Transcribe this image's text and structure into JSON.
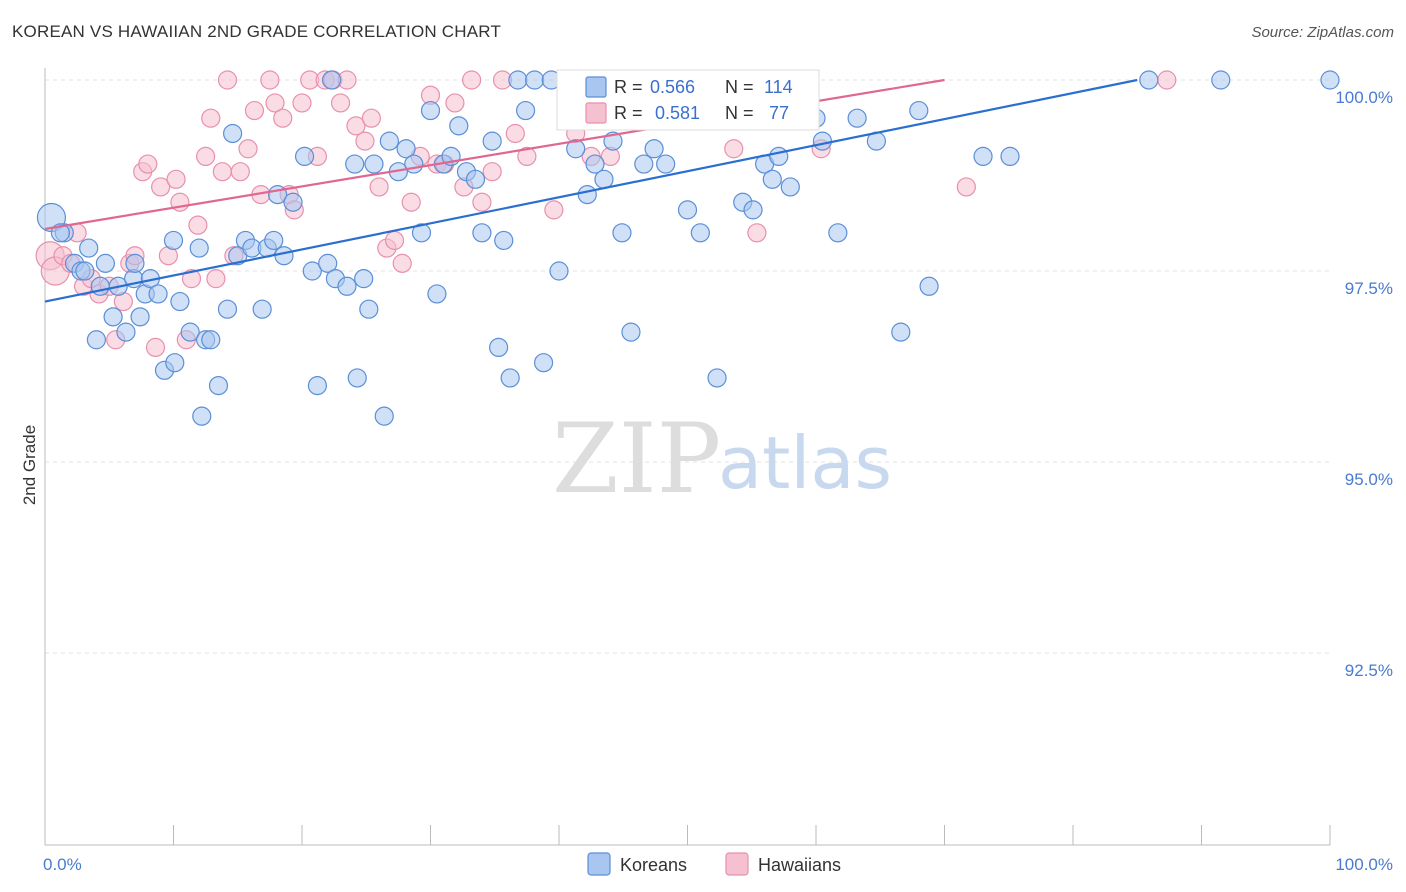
{
  "title": "KOREAN VS HAWAIIAN 2ND GRADE CORRELATION CHART",
  "source": "Source: ZipAtlas.com",
  "watermark": {
    "zip": "ZIP",
    "atlas": "atlas"
  },
  "colors": {
    "blue_fill": "#a8c6f0",
    "blue_stroke": "#5b8fd6",
    "blue_line": "#2a6fd0",
    "pink_fill": "#f5c0d0",
    "pink_stroke": "#e890ad",
    "pink_line": "#e06890",
    "grid": "#e3e3e3",
    "axis_text": "#4a7bd0"
  },
  "chart_data": {
    "type": "scatter",
    "title": "KOREAN VS HAWAIIAN 2ND GRADE CORRELATION CHART",
    "xlabel": "",
    "ylabel": "2nd Grade",
    "xlim": [
      0,
      100
    ],
    "ylim": [
      90.0,
      100.2
    ],
    "x_tick_labels": [
      "0.0%",
      "100.0%"
    ],
    "y_ticks": [
      92.5,
      95.0,
      97.5,
      100.0
    ],
    "y_tick_labels": [
      "92.5%",
      "95.0%",
      "97.5%",
      "100.0%"
    ],
    "legend": {
      "placement": "top-center",
      "entries": [
        {
          "series": "Koreans",
          "r_label": "R = ",
          "r": "0.566",
          "n_label": "N = ",
          "n": "114"
        },
        {
          "series": "Hawaiians",
          "r_label": "R = ",
          "r": "0.581",
          "n_label": "N = ",
          "n": "77"
        }
      ]
    },
    "bottom_legend": [
      "Koreans",
      "Hawaiians"
    ],
    "series": [
      {
        "name": "Koreans",
        "trend": {
          "x": [
            0,
            85
          ],
          "y": [
            97.1,
            100.0
          ]
        },
        "points": [
          [
            0.5,
            98.2
          ],
          [
            1.5,
            98.0
          ],
          [
            2.3,
            97.6
          ],
          [
            3.4,
            97.8
          ],
          [
            2.8,
            97.5
          ],
          [
            4.0,
            96.6
          ],
          [
            4.3,
            97.3
          ],
          [
            4.7,
            97.6
          ],
          [
            5.3,
            96.9
          ],
          [
            5.7,
            97.3
          ],
          [
            6.3,
            96.7
          ],
          [
            6.9,
            97.4
          ],
          [
            7.4,
            96.9
          ],
          [
            7.8,
            97.2
          ],
          [
            8.2,
            97.4
          ],
          [
            8.8,
            97.2
          ],
          [
            9.3,
            96.2
          ],
          [
            10.1,
            96.3
          ],
          [
            10.5,
            97.1
          ],
          [
            10.0,
            97.9
          ],
          [
            11.3,
            96.7
          ],
          [
            12.2,
            95.6
          ],
          [
            12.5,
            96.6
          ],
          [
            12.9,
            96.6
          ],
          [
            13.5,
            96.0
          ],
          [
            14.2,
            97.0
          ],
          [
            14.6,
            99.3
          ],
          [
            15.0,
            97.7
          ],
          [
            15.6,
            97.9
          ],
          [
            16.1,
            97.8
          ],
          [
            16.9,
            97.0
          ],
          [
            17.3,
            97.8
          ],
          [
            17.8,
            97.9
          ],
          [
            18.1,
            98.5
          ],
          [
            18.6,
            97.7
          ],
          [
            19.3,
            98.4
          ],
          [
            20.2,
            99.0
          ],
          [
            20.8,
            97.5
          ],
          [
            21.2,
            96.0
          ],
          [
            22.0,
            97.6
          ],
          [
            22.6,
            97.4
          ],
          [
            23.5,
            97.3
          ],
          [
            24.1,
            98.9
          ],
          [
            24.3,
            96.1
          ],
          [
            24.8,
            97.4
          ],
          [
            25.2,
            97.0
          ],
          [
            25.6,
            98.9
          ],
          [
            26.4,
            95.6
          ],
          [
            26.8,
            99.2
          ],
          [
            27.5,
            98.8
          ],
          [
            28.1,
            99.1
          ],
          [
            28.7,
            98.9
          ],
          [
            29.3,
            98.0
          ],
          [
            30.0,
            99.6
          ],
          [
            30.5,
            97.2
          ],
          [
            31.0,
            98.9
          ],
          [
            31.6,
            99.0
          ],
          [
            32.2,
            99.4
          ],
          [
            32.8,
            98.8
          ],
          [
            33.5,
            98.7
          ],
          [
            34.0,
            98.0
          ],
          [
            34.8,
            99.2
          ],
          [
            35.3,
            96.5
          ],
          [
            35.7,
            97.9
          ],
          [
            36.2,
            96.1
          ],
          [
            36.8,
            100.0
          ],
          [
            37.4,
            99.6
          ],
          [
            38.1,
            100.0
          ],
          [
            38.8,
            96.3
          ],
          [
            39.4,
            100.0
          ],
          [
            40.0,
            97.5
          ],
          [
            40.7,
            100.0
          ],
          [
            41.3,
            99.1
          ],
          [
            42.2,
            98.5
          ],
          [
            42.8,
            98.9
          ],
          [
            43.5,
            98.7
          ],
          [
            44.2,
            99.2
          ],
          [
            44.9,
            98.0
          ],
          [
            45.6,
            96.7
          ],
          [
            46.0,
            100.0
          ],
          [
            46.6,
            98.9
          ],
          [
            47.4,
            99.1
          ],
          [
            48.3,
            98.9
          ],
          [
            49.3,
            100.0
          ],
          [
            50.0,
            98.3
          ],
          [
            51.0,
            98.0
          ],
          [
            52.3,
            96.1
          ],
          [
            53.2,
            100.0
          ],
          [
            54.3,
            98.4
          ],
          [
            55.1,
            98.3
          ],
          [
            56.0,
            98.9
          ],
          [
            56.6,
            98.7
          ],
          [
            57.1,
            99.0
          ],
          [
            58.0,
            98.6
          ],
          [
            60.0,
            99.5
          ],
          [
            60.5,
            99.2
          ],
          [
            61.7,
            98.0
          ],
          [
            63.2,
            99.5
          ],
          [
            64.7,
            99.2
          ],
          [
            66.6,
            96.7
          ],
          [
            68.0,
            99.6
          ],
          [
            68.8,
            97.3
          ],
          [
            73.0,
            99.0
          ],
          [
            75.1,
            99.0
          ],
          [
            85.9,
            100.0
          ],
          [
            91.5,
            100.0
          ],
          [
            100.0,
            100.0
          ],
          [
            1.2,
            98.0
          ],
          [
            3.1,
            97.5
          ],
          [
            7.0,
            97.6
          ],
          [
            12.0,
            97.8
          ],
          [
            22.3,
            100.0
          ],
          [
            43.9,
            100.0
          ],
          [
            57.5,
            100.0
          ]
        ]
      },
      {
        "name": "Hawaiians",
        "trend": {
          "x": [
            0,
            70
          ],
          "y": [
            98.05,
            100.0
          ]
        },
        "points": [
          [
            0.4,
            97.7
          ],
          [
            0.8,
            97.5
          ],
          [
            1.4,
            97.7
          ],
          [
            2.0,
            97.6
          ],
          [
            2.5,
            98.0
          ],
          [
            3.0,
            97.3
          ],
          [
            3.6,
            97.4
          ],
          [
            4.2,
            97.2
          ],
          [
            5.0,
            97.3
          ],
          [
            5.5,
            96.6
          ],
          [
            6.1,
            97.1
          ],
          [
            6.6,
            97.6
          ],
          [
            7.0,
            97.7
          ],
          [
            7.6,
            98.8
          ],
          [
            8.0,
            98.9
          ],
          [
            8.6,
            96.5
          ],
          [
            9.0,
            98.6
          ],
          [
            9.6,
            97.7
          ],
          [
            10.2,
            98.7
          ],
          [
            10.5,
            98.4
          ],
          [
            11.0,
            96.6
          ],
          [
            11.4,
            97.4
          ],
          [
            11.9,
            98.1
          ],
          [
            12.5,
            99.0
          ],
          [
            12.9,
            99.5
          ],
          [
            13.3,
            97.4
          ],
          [
            13.8,
            98.8
          ],
          [
            14.2,
            100.0
          ],
          [
            14.7,
            97.7
          ],
          [
            15.2,
            98.8
          ],
          [
            15.8,
            99.1
          ],
          [
            16.3,
            99.6
          ],
          [
            16.8,
            98.5
          ],
          [
            17.5,
            100.0
          ],
          [
            17.9,
            99.7
          ],
          [
            18.5,
            99.5
          ],
          [
            19.0,
            98.5
          ],
          [
            19.4,
            98.3
          ],
          [
            20.0,
            99.7
          ],
          [
            20.6,
            100.0
          ],
          [
            21.2,
            99.0
          ],
          [
            21.8,
            100.0
          ],
          [
            22.4,
            100.0
          ],
          [
            23.0,
            99.7
          ],
          [
            23.5,
            100.0
          ],
          [
            24.2,
            99.4
          ],
          [
            24.9,
            99.2
          ],
          [
            25.4,
            99.5
          ],
          [
            26.0,
            98.6
          ],
          [
            26.6,
            97.8
          ],
          [
            27.2,
            97.9
          ],
          [
            27.8,
            97.6
          ],
          [
            28.5,
            98.4
          ],
          [
            29.2,
            99.0
          ],
          [
            30.0,
            99.8
          ],
          [
            30.5,
            98.9
          ],
          [
            31.1,
            98.9
          ],
          [
            31.9,
            99.7
          ],
          [
            32.6,
            98.6
          ],
          [
            33.2,
            100.0
          ],
          [
            34.0,
            98.4
          ],
          [
            34.8,
            98.8
          ],
          [
            35.6,
            100.0
          ],
          [
            36.6,
            99.3
          ],
          [
            37.5,
            99.0
          ],
          [
            39.6,
            98.3
          ],
          [
            41.3,
            99.3
          ],
          [
            42.5,
            99.0
          ],
          [
            44.0,
            99.0
          ],
          [
            48.6,
            99.5
          ],
          [
            51.0,
            99.6
          ],
          [
            53.6,
            99.1
          ],
          [
            55.4,
            98.0
          ],
          [
            57.2,
            99.6
          ],
          [
            60.4,
            99.1
          ],
          [
            71.7,
            98.6
          ],
          [
            87.3,
            100.0
          ]
        ]
      }
    ]
  }
}
